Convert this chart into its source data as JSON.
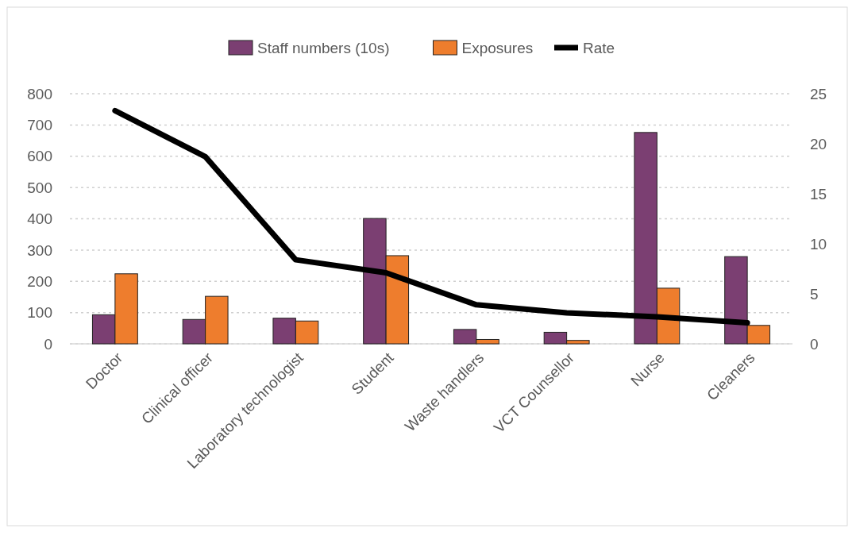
{
  "chart_data": {
    "type": "bar",
    "categories": [
      "Doctor",
      "Clinical officer",
      "Laboratory technologist",
      "Student",
      "Waste handlers",
      "VCT Counsellor",
      "Nurse",
      "Cleaners"
    ],
    "series": [
      {
        "name": "Staff numbers (10s)",
        "color": "#7b3f72",
        "values": [
          93,
          78,
          82,
          401,
          46,
          37,
          676,
          279
        ]
      },
      {
        "name": "Exposures",
        "color": "#ee7d2d",
        "values": [
          224,
          152,
          73,
          282,
          14,
          11,
          178,
          59
        ]
      },
      {
        "name": "Rate",
        "type": "line",
        "axis": "y2",
        "color": "#000000",
        "values": [
          23.3,
          18.7,
          8.4,
          7.1,
          3.9,
          3.1,
          2.7,
          2.1
        ]
      }
    ],
    "ylim": [
      0,
      800
    ],
    "yticks": [
      0,
      100,
      200,
      300,
      400,
      500,
      600,
      700,
      800
    ],
    "y2lim": [
      0,
      25
    ],
    "y2ticks": [
      0,
      5,
      10,
      15,
      20,
      25
    ],
    "grid": "y",
    "legend": "top",
    "marker": "none",
    "line_style": "solid"
  }
}
